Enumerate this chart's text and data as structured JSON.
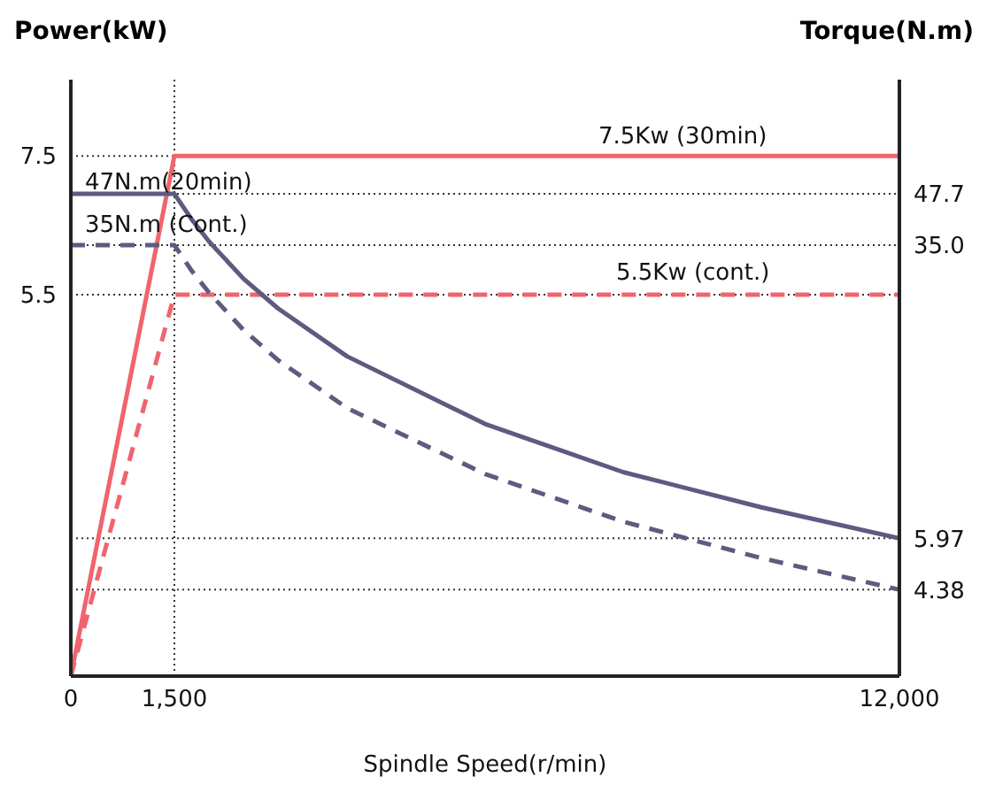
{
  "chart_data": {
    "type": "line",
    "ylabel": "Power(kW)",
    "y2label": "Torque(N.m)",
    "xlabel": "Spindle Speed(r/min)",
    "xlim": [
      0,
      12000
    ],
    "xticks": [
      0,
      {
        "value": 1500,
        "label": "1,500"
      },
      {
        "value": 12000,
        "label": "12,000"
      }
    ],
    "ylim": [
      0,
      8.6
    ],
    "yticks": [
      5.5,
      7.5
    ],
    "y2lim": [
      2.6,
      95
    ],
    "y2ticks": [
      {
        "value": 47.7,
        "label": "47.7"
      },
      {
        "value": 35,
        "label": "35.0"
      },
      {
        "value": 5.97,
        "label": "5.97"
      },
      {
        "value": 4.38,
        "label": "4.38"
      }
    ],
    "log": "y2",
    "grid": true,
    "legend": false,
    "marker": "none",
    "series": [
      {
        "color": "#f0646e",
        "line_style": "solid",
        "x": [
          0,
          1500,
          12000
        ],
        "values": [
          0,
          7.5,
          7.5
        ]
      },
      {
        "color": "#f0646e",
        "line_style": "dashed",
        "x": [
          0,
          1500,
          12000
        ],
        "values": [
          0,
          5.5,
          5.5
        ]
      },
      {
        "color": "#5f5a80",
        "line_style": "solid",
        "axis": "y2",
        "x": [
          0,
          1500,
          1750,
          2000,
          2500,
          3000,
          4000,
          6000,
          8000,
          10000,
          12000
        ],
        "values": [
          47.7,
          47.7,
          40.9,
          35.8,
          28.6,
          23.9,
          17.9,
          11.9,
          8.9,
          7.2,
          5.97
        ]
      },
      {
        "color": "#5f5a80",
        "line_style": "dashed",
        "axis": "y2",
        "x": [
          0,
          1500,
          1750,
          2000,
          2500,
          3000,
          4000,
          6000,
          8000,
          10000,
          12000
        ],
        "values": [
          35,
          35,
          30,
          26.3,
          21,
          17.5,
          13.1,
          8.8,
          6.6,
          5.3,
          4.38
        ]
      }
    ],
    "annotations": [
      "7.5Kw (30min)",
      "47N.m(20min)",
      "35N.m (Cont.)",
      "5.5Kw (cont.)"
    ]
  }
}
